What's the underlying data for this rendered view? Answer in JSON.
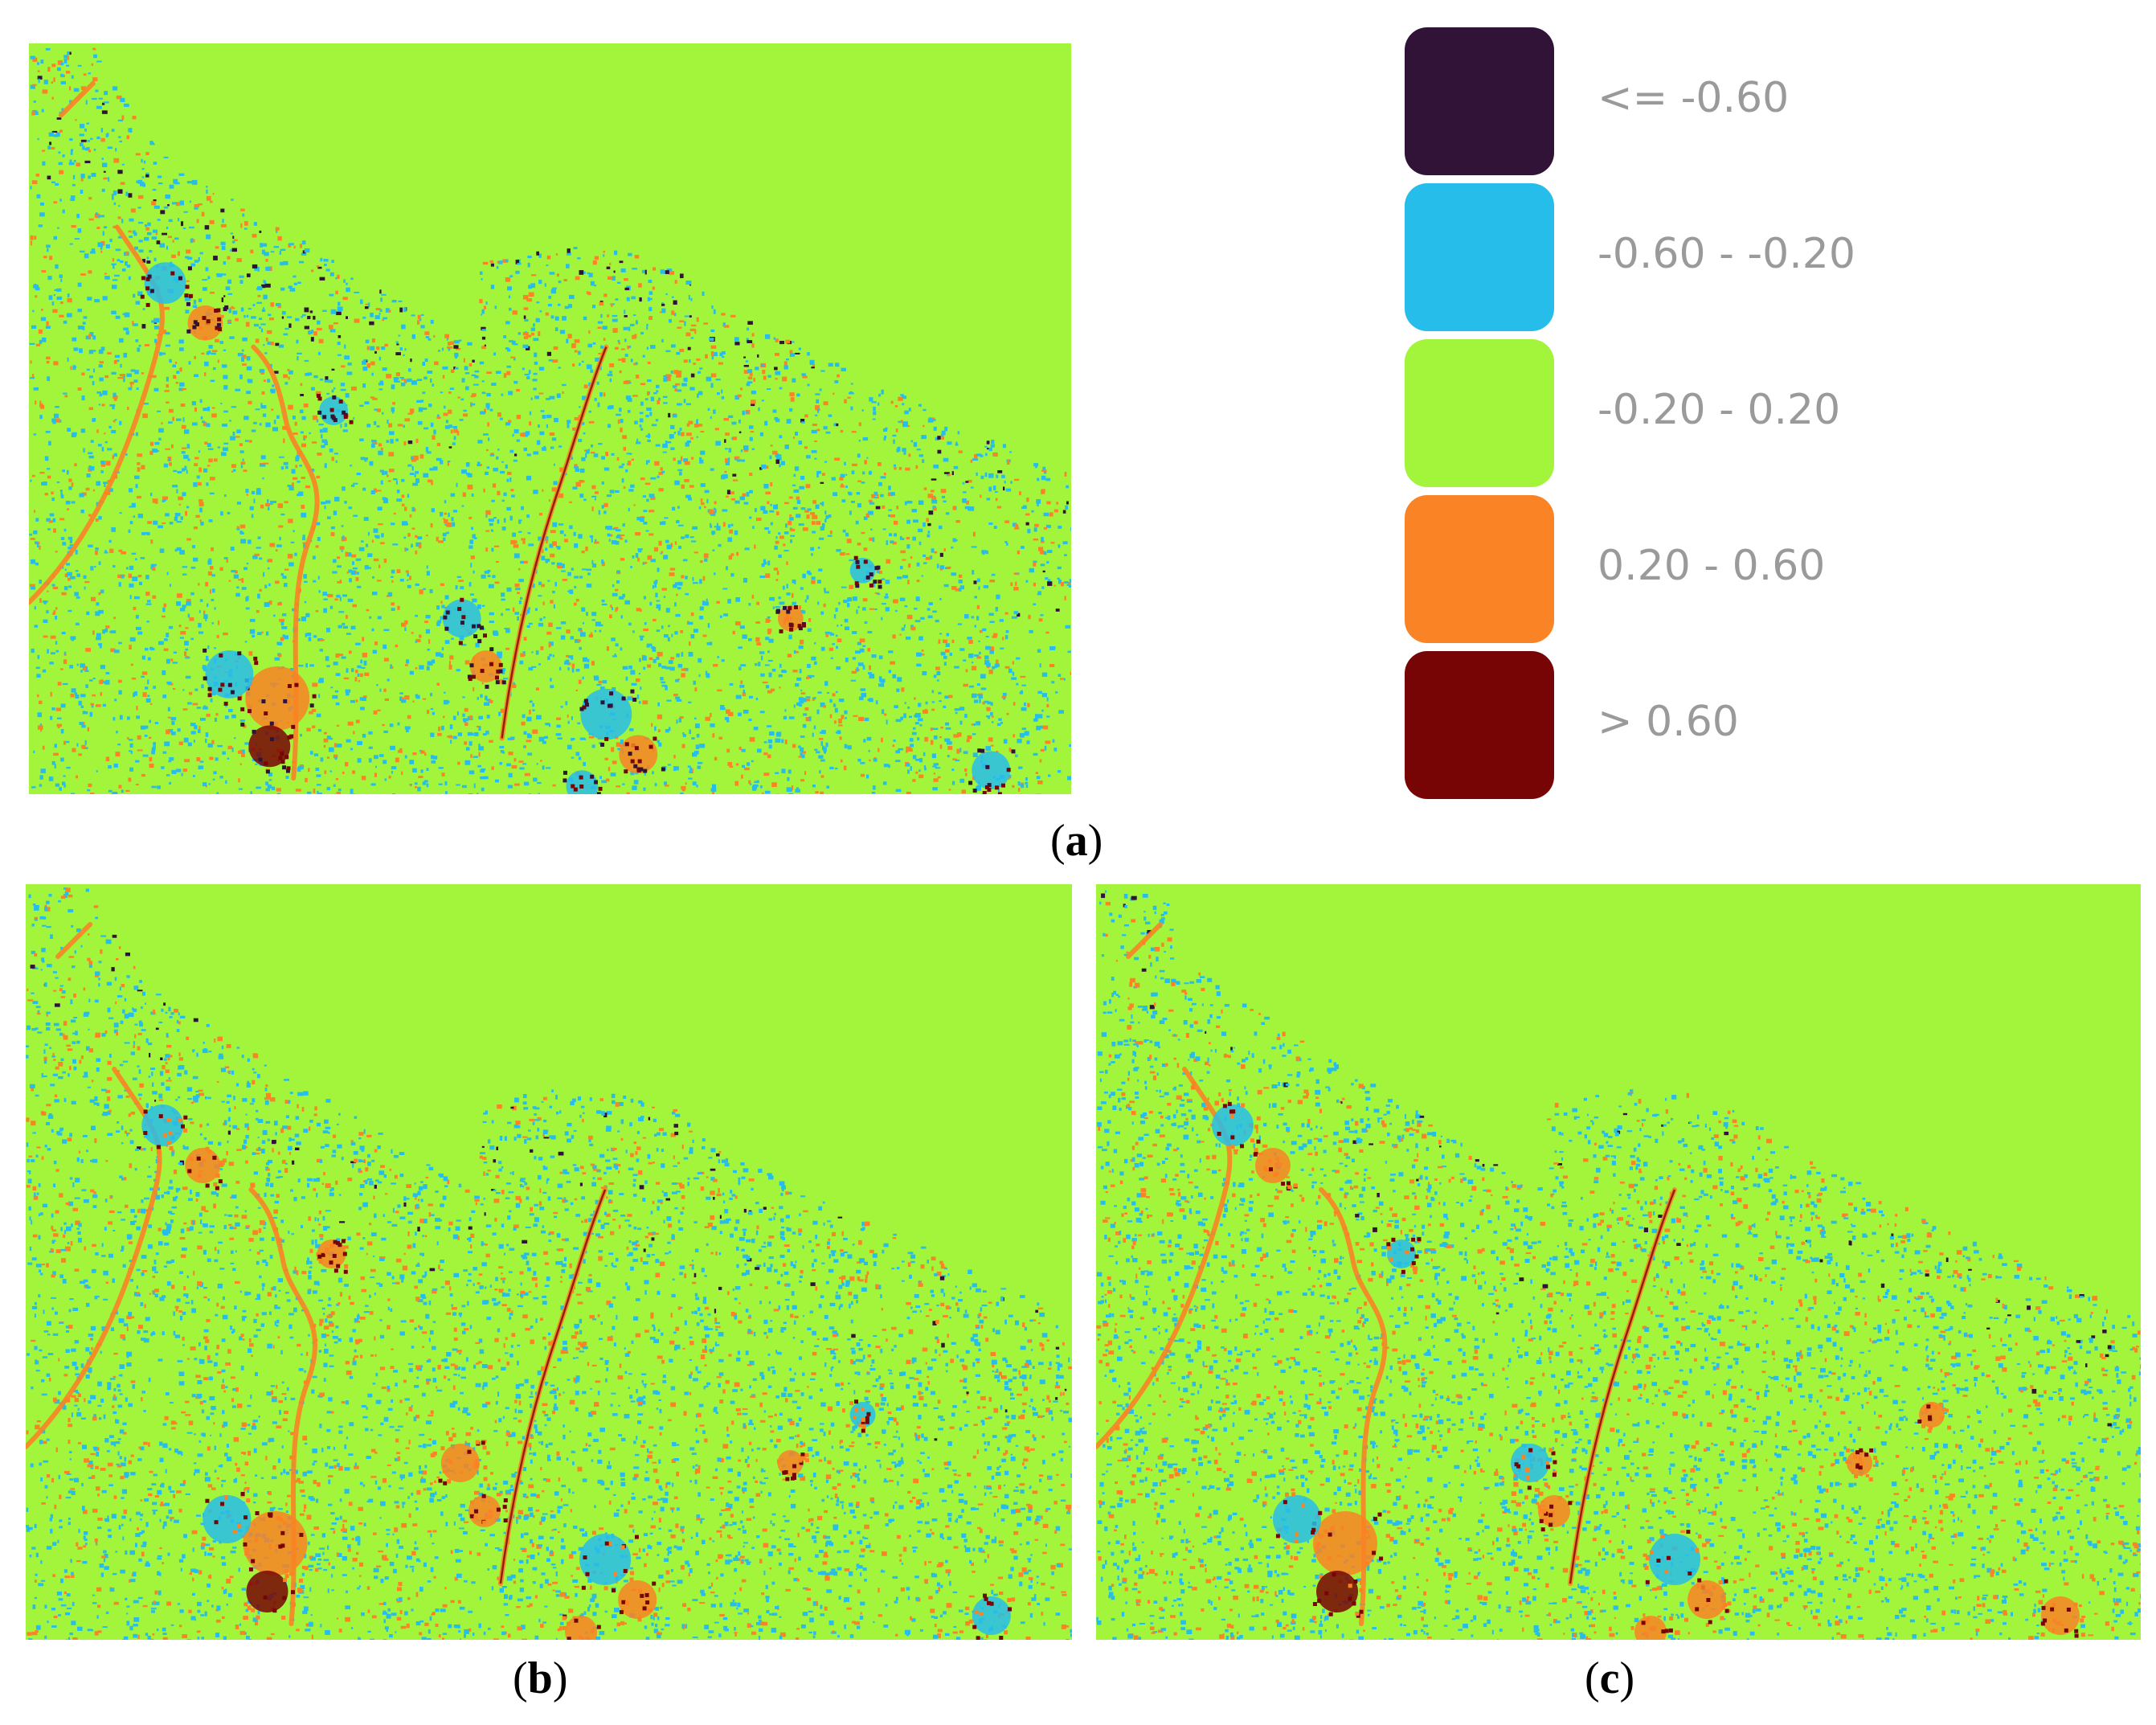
{
  "figure": {
    "panels": [
      {
        "id": "a",
        "caption_letter": "a"
      },
      {
        "id": "b",
        "caption_letter": "b"
      },
      {
        "id": "c",
        "caption_letter": "c"
      }
    ],
    "caption_open": "(",
    "caption_close": ")"
  },
  "legend": {
    "items": [
      {
        "label": "<= -0.60",
        "color": "#311337"
      },
      {
        "label": "-0.60 - -0.20",
        "color": "#27bdea"
      },
      {
        "label": "-0.20 - 0.20",
        "color": "#a3f53c"
      },
      {
        "label": "0.20 - 0.60",
        "color": "#fa8325"
      },
      {
        "label": "> 0.60",
        "color": "#780506"
      }
    ]
  },
  "map_colors": {
    "sea": "#a3f53c",
    "land": "#a3f53c",
    "class_low": "#311337",
    "class_mid_low": "#27bdea",
    "class_mid_high": "#fa8325",
    "class_high": "#780506"
  }
}
